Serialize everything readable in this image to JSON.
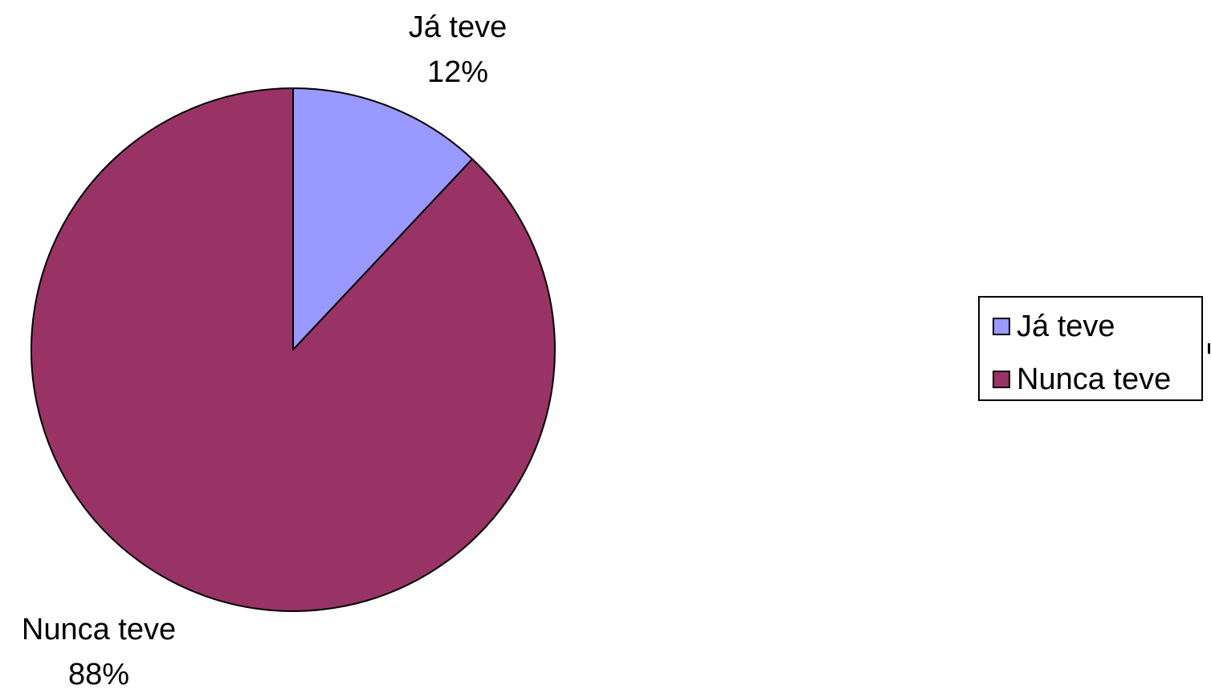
{
  "chart_data": {
    "type": "pie",
    "title": "",
    "slices": [
      {
        "label": "Já teve",
        "value": 12,
        "percent_label": "12%",
        "color": "#9999ff"
      },
      {
        "label": "Nunca teve",
        "value": 88,
        "percent_label": "88%",
        "color": "#993366"
      }
    ],
    "start_angle": "12 o'clock",
    "direction": "clockwise",
    "legend": {
      "placement": "right",
      "entries": [
        "Já teve",
        "Nunca teve"
      ]
    }
  }
}
